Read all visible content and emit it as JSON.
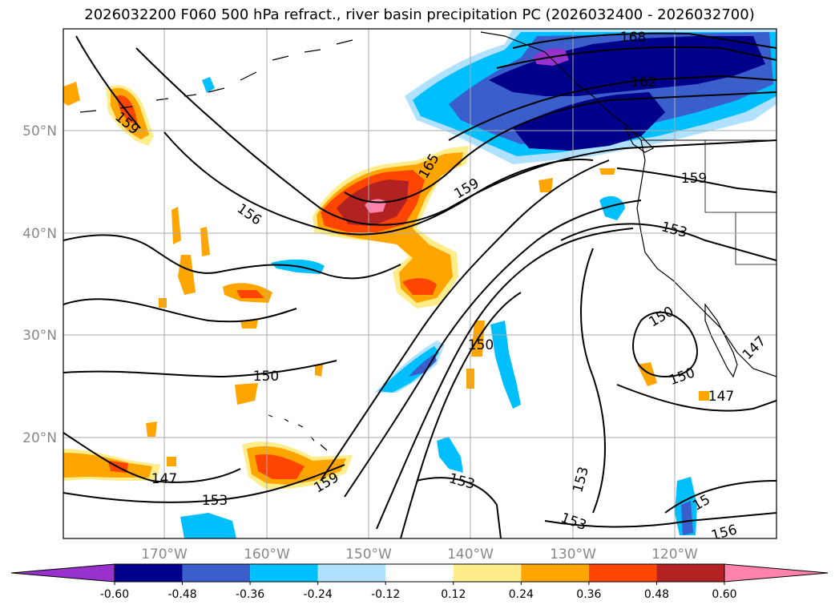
{
  "title": "2026032200 F060 500 hPa refract., river basin precipitation PC (2026032400 - 2026032700)",
  "lat_labels": [
    "50°N",
    "40°N",
    "30°N",
    "20°N"
  ],
  "lon_labels": [
    "170°W",
    "160°W",
    "150°W",
    "140°W",
    "130°W",
    "120°W"
  ],
  "colorbar": {
    "colors": [
      "#9932cc",
      "#00008b",
      "#3a5fcd",
      "#00bfff",
      "#b0e2ff",
      "#ffffff",
      "#ffec8b",
      "#ffa500",
      "#ff4500",
      "#b22222",
      "#ff82ab"
    ],
    "ticks": [
      "-0.60",
      "-0.48",
      "-0.36",
      "-0.24",
      "-0.12",
      "0.12",
      "0.24",
      "0.36",
      "0.48",
      "0.60"
    ]
  },
  "contour_labels": [
    "168",
    "162",
    "165",
    "159",
    "159",
    "156",
    "153",
    "150",
    "150",
    "150",
    "147",
    "147",
    "147",
    "150",
    "153",
    "153",
    "159",
    "153",
    "156",
    "153",
    "159",
    "15"
  ]
}
